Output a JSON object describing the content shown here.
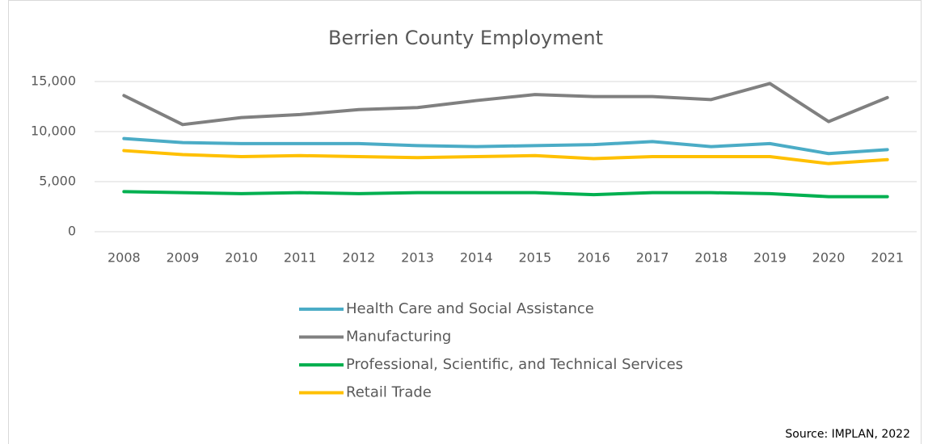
{
  "chart_data": {
    "type": "line",
    "title": "Berrien County Employment",
    "source": "Source: IMPLAN, 2022",
    "categories": [
      "2008",
      "2009",
      "2010",
      "2011",
      "2012",
      "2013",
      "2014",
      "2015",
      "2016",
      "2017",
      "2018",
      "2019",
      "2020",
      "2021"
    ],
    "series": [
      {
        "name": "Health Care and Social Assistance",
        "color": "#4bacc6",
        "values": [
          9300,
          8900,
          8800,
          8800,
          8800,
          8600,
          8500,
          8600,
          8700,
          9000,
          8500,
          8800,
          7800,
          8200
        ]
      },
      {
        "name": "Manufacturing",
        "color": "#808080",
        "values": [
          13600,
          10700,
          11400,
          11700,
          12200,
          12400,
          13100,
          13700,
          13500,
          13500,
          13200,
          14800,
          11000,
          13400
        ]
      },
      {
        "name": "Professional, Scientific, and Technical Services",
        "color": "#00b050",
        "values": [
          4000,
          3900,
          3800,
          3900,
          3800,
          3900,
          3900,
          3900,
          3700,
          3900,
          3900,
          3800,
          3500,
          3500
        ]
      },
      {
        "name": "Retail Trade",
        "color": "#ffc000",
        "values": [
          8100,
          7700,
          7500,
          7600,
          7500,
          7400,
          7500,
          7600,
          7300,
          7500,
          7500,
          7500,
          6800,
          7200
        ]
      }
    ],
    "ylim": [
      0,
      15000
    ],
    "yticks": [
      0,
      {
        "value": 5000,
        "label": "5,000"
      },
      {
        "value": 10000,
        "label": "10,000"
      },
      {
        "value": 15000,
        "label": "15,000"
      }
    ],
    "grid": true,
    "legend": "bottom"
  }
}
